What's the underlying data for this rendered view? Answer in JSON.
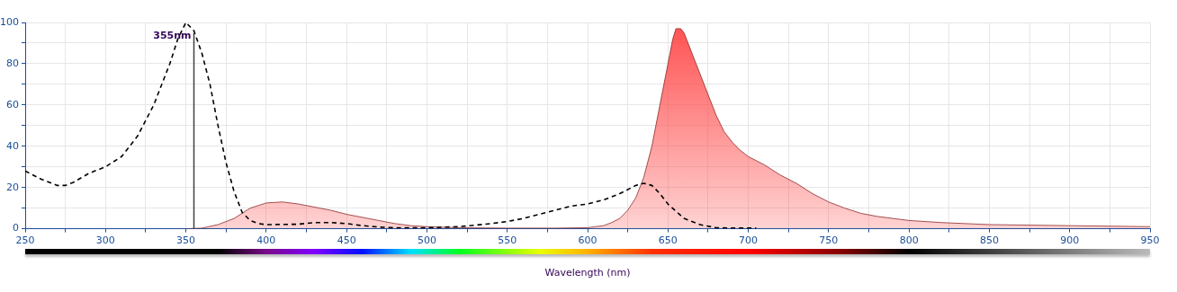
{
  "chart_data": {
    "type": "line",
    "xlabel": "Wavelength (nm)",
    "xlim": [
      250,
      950
    ],
    "ylim": [
      0,
      100
    ],
    "xticks": [
      250,
      {
        "value": 275,
        "label": null
      },
      300,
      {
        "value": 325,
        "label": null
      },
      350,
      {
        "value": 375,
        "label": null
      },
      400,
      {
        "value": 425,
        "label": null
      },
      450,
      {
        "value": 475,
        "label": null
      },
      500,
      {
        "value": 525,
        "label": null
      },
      550,
      {
        "value": 575,
        "label": null
      },
      600,
      {
        "value": 625,
        "label": null
      },
      650,
      {
        "value": 675,
        "label": null
      },
      700,
      {
        "value": 725,
        "label": null
      },
      750,
      {
        "value": 775,
        "label": null
      },
      800,
      {
        "value": 825,
        "label": null
      },
      850,
      {
        "value": 875,
        "label": null
      },
      900,
      {
        "value": 925,
        "label": null
      },
      950
    ],
    "yticks": [
      0,
      {
        "value": 10,
        "label": null
      },
      20,
      {
        "value": 30,
        "label": null
      },
      40,
      {
        "value": 50,
        "label": null
      },
      60,
      {
        "value": 70,
        "label": null
      },
      80,
      {
        "value": 90,
        "label": null
      },
      100
    ],
    "grid": true,
    "marker": "none",
    "series": [
      {
        "type": "line",
        "line_style": "dashed",
        "color": "#000000",
        "x": [
          250,
          260,
          270,
          275,
          280,
          290,
          300,
          310,
          320,
          330,
          340,
          345,
          350,
          355,
          360,
          365,
          370,
          375,
          380,
          385,
          390,
          395,
          400,
          420,
          430,
          440,
          450,
          460,
          470,
          480,
          500,
          520,
          540,
          550,
          560,
          570,
          580,
          590,
          600,
          610,
          620,
          630,
          635,
          640,
          645,
          650,
          660,
          670,
          680,
          690,
          700,
          705
        ],
        "values": [
          28,
          24,
          21,
          21,
          22.5,
          27,
          30,
          35,
          45,
          60,
          80,
          92,
          100,
          96,
          85,
          70,
          50,
          32,
          18,
          8,
          4,
          2.5,
          2,
          2.2,
          3,
          3,
          2.5,
          1.5,
          0.8,
          0.5,
          0.5,
          1,
          2.5,
          3.5,
          5,
          7,
          9,
          11,
          12,
          14,
          17,
          21,
          22,
          21,
          17,
          12,
          5,
          2,
          0.5,
          0.3,
          0.3,
          0.3
        ]
      },
      {
        "type": "area",
        "color": "#ff5050",
        "x": [
          350,
          360,
          370,
          380,
          390,
          400,
          410,
          420,
          430,
          440,
          450,
          460,
          470,
          480,
          490,
          500,
          520,
          550,
          580,
          600,
          610,
          615,
          620,
          625,
          630,
          635,
          640,
          645,
          650,
          653,
          655,
          658,
          660,
          665,
          670,
          675,
          680,
          685,
          690,
          695,
          700,
          710,
          720,
          730,
          740,
          750,
          760,
          770,
          780,
          790,
          800,
          820,
          850,
          900,
          950
        ],
        "values": [
          0,
          0.3,
          2,
          5,
          10,
          12.5,
          13,
          12,
          10.5,
          9,
          7,
          5.5,
          4,
          2.5,
          1.5,
          1,
          0.5,
          0.3,
          0.3,
          0.5,
          1.5,
          3,
          5,
          9,
          15,
          25,
          40,
          60,
          80,
          92,
          97,
          97,
          95,
          85,
          75,
          65,
          55,
          47,
          42,
          38,
          35,
          31,
          26,
          22,
          17,
          13,
          10,
          7.5,
          6,
          5,
          4,
          3,
          2,
          1.5,
          1
        ]
      }
    ],
    "ref_lines": [
      {
        "axis": "x",
        "value": 355,
        "label": "355nm",
        "color": "#404040"
      }
    ]
  }
}
